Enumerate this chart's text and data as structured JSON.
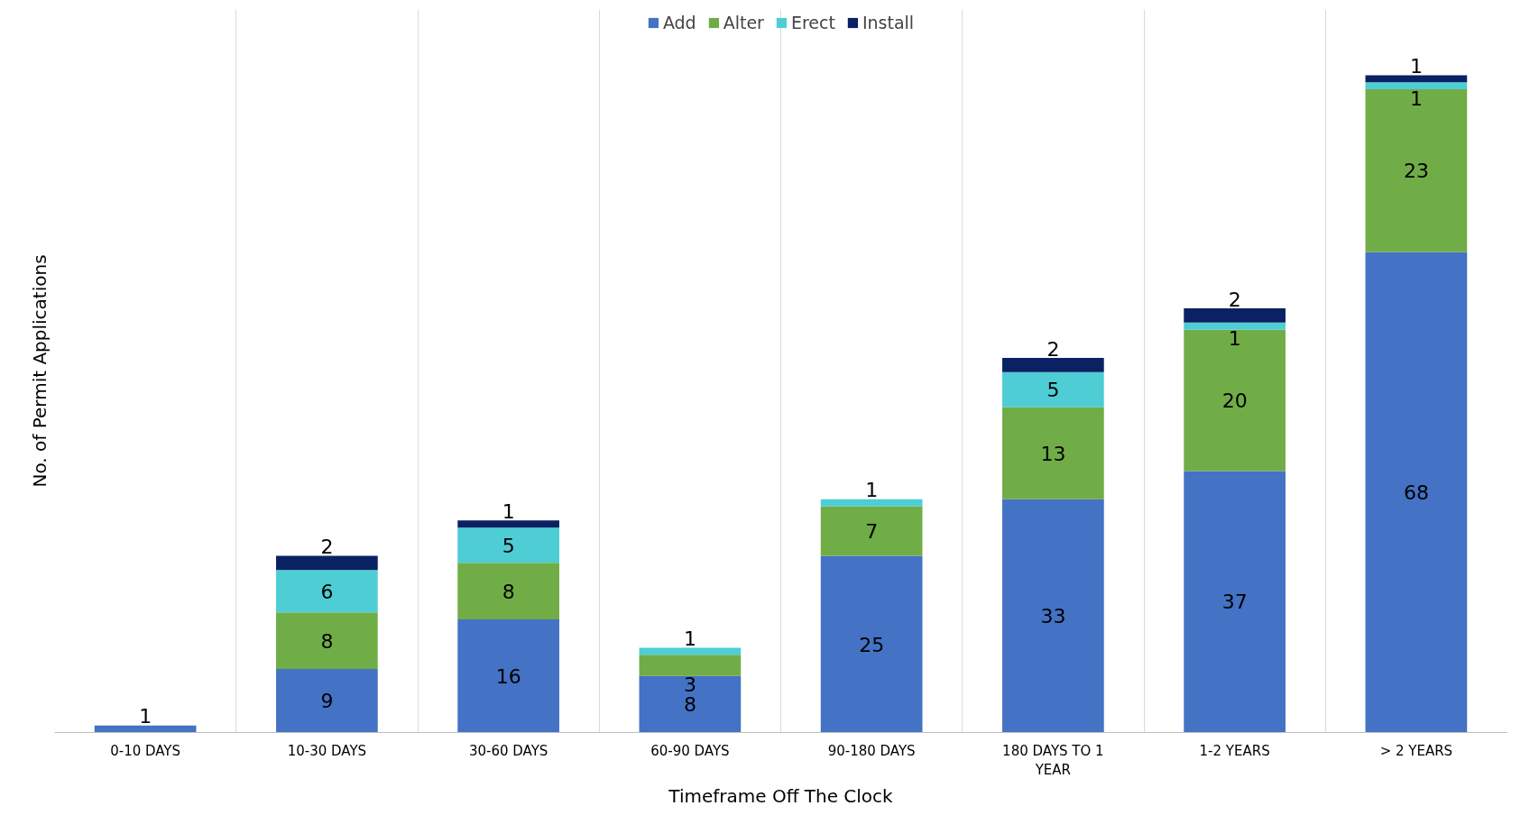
{
  "chart_data": {
    "type": "bar",
    "stacked": true,
    "xlabel": "Timeframe Off The Clock",
    "ylabel": "No. of Permit Applications",
    "categories": [
      "0-10 DAYS",
      "10-30 DAYS",
      "30-60 DAYS",
      "60-90 DAYS",
      "90-180 DAYS",
      "180 DAYS TO 1 YEAR",
      "1-2 YEARS",
      "> 2 YEARS"
    ],
    "series": [
      {
        "name": "Add",
        "color": "#4472c4",
        "values": [
          1,
          9,
          16,
          8,
          25,
          33,
          37,
          68
        ]
      },
      {
        "name": "Alter",
        "color": "#70ad47",
        "values": [
          null,
          8,
          8,
          3,
          7,
          13,
          20,
          23
        ]
      },
      {
        "name": "Erect",
        "color": "#4ecdd4",
        "values": [
          null,
          6,
          5,
          1,
          1,
          5,
          1,
          1
        ]
      },
      {
        "name": "Install",
        "color": "#0a2263",
        "values": [
          null,
          2,
          1,
          null,
          null,
          2,
          2,
          1
        ]
      }
    ],
    "data_labels": true,
    "grid": "x",
    "legend": "top"
  }
}
